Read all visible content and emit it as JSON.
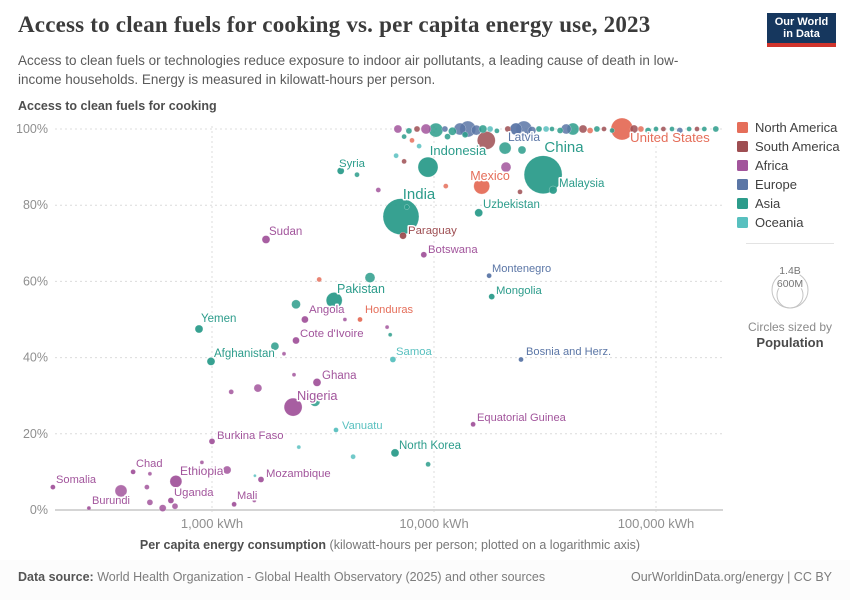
{
  "header": {
    "title": "Access to clean fuels for cooking vs. per capita energy use, 2023",
    "subtitle": "Access to clean fuels or technologies reduce exposure to indoor air pollutants, a leading cause of death in low-income households. Energy is measured in kilowatt-hours per person.",
    "logo_line1": "Our World",
    "logo_line2": "in Data"
  },
  "axes": {
    "y_title": "Access to clean fuels for cooking",
    "x_title_bold": "Per capita energy consumption",
    "x_title_rest": " (kilowatt-hours per person; plotted on a logarithmic axis)"
  },
  "legend": {
    "continents": [
      {
        "key": "na",
        "label": "North America"
      },
      {
        "key": "sa",
        "label": "South America"
      },
      {
        "key": "af",
        "label": "Africa"
      },
      {
        "key": "eu",
        "label": "Europe"
      },
      {
        "key": "as",
        "label": "Asia"
      },
      {
        "key": "oc",
        "label": "Oceania"
      }
    ],
    "size": {
      "big": "1.4B",
      "small": "600M",
      "caption": "Circles sized by",
      "caption_bold": "Population"
    }
  },
  "footer": {
    "source_bold": "Data source:",
    "source_rest": " World Health Organization - Global Health Observatory (2025) and other sources",
    "link": "OurWorldinData.org/energy | CC BY"
  },
  "colors": {
    "na": "#e56e5a",
    "sa": "#9e4e52",
    "af": "#a2559c",
    "eu": "#5b76a6",
    "as": "#2c9c8b",
    "oc": "#58c0bf",
    "logo_navy": "#16375e",
    "logo_red": "#d0342c",
    "grid": "#dcdcdc",
    "tick": "#8f8f8f"
  },
  "chart_data": {
    "type": "scatter",
    "x_scale": "log",
    "x_label": "Per capita energy consumption (kWh/person)",
    "y_label": "Access to clean fuels for cooking (%)",
    "x_ticks": [
      {
        "kwh": 1000,
        "label": "1,000 kWh"
      },
      {
        "kwh": 10000,
        "label": "10,000 kWh"
      },
      {
        "kwh": 100000,
        "label": "100,000 kWh"
      }
    ],
    "y_ticks": [
      {
        "pct": 0,
        "label": "0%"
      },
      {
        "pct": 20,
        "label": "20%"
      },
      {
        "pct": 40,
        "label": "40%"
      },
      {
        "pct": 60,
        "label": "60%"
      },
      {
        "pct": 80,
        "label": "80%"
      },
      {
        "pct": 100,
        "label": "100%"
      }
    ],
    "points": [
      {
        "l": "United States",
        "c": "na",
        "k": 70300,
        "p": 100,
        "r": 11,
        "lp": [
          630,
          142,
          "s"
        ]
      },
      {
        "l": "China",
        "c": "as",
        "k": 31000,
        "p": 88,
        "r": 19,
        "lp": [
          564,
          152,
          "m"
        ]
      },
      {
        "l": "India",
        "c": "as",
        "k": 7100,
        "p": 77,
        "r": 18,
        "lp": [
          419,
          199,
          "m"
        ]
      },
      {
        "l": "Indonesia",
        "c": "as",
        "k": 9400,
        "p": 90,
        "r": 10,
        "lp": [
          458,
          155,
          "m"
        ]
      },
      {
        "l": "Latvia",
        "c": "eu",
        "k": 23400,
        "p": 100,
        "r": 6,
        "lp": [
          524,
          141,
          "m"
        ]
      },
      {
        "l": "Mexico",
        "c": "na",
        "k": 16400,
        "p": 85,
        "r": 8,
        "lp": [
          490,
          180,
          "m"
        ]
      },
      {
        "l": "Malaysia",
        "c": "as",
        "k": 34400,
        "p": 84,
        "r": 4,
        "lp": [
          559,
          187,
          "s"
        ]
      },
      {
        "l": "Syria",
        "c": "as",
        "k": 3800,
        "p": 89,
        "r": 3.5,
        "lp": [
          339,
          167,
          "s"
        ]
      },
      {
        "l": "Uzbekistan",
        "c": "as",
        "k": 15900,
        "p": 78,
        "r": 4,
        "lp": [
          483,
          208,
          "s"
        ]
      },
      {
        "l": "Paraguay",
        "c": "sa",
        "k": 7250,
        "p": 72,
        "r": 3.5,
        "lp": [
          408,
          234,
          "s"
        ]
      },
      {
        "l": "Sudan",
        "c": "af",
        "k": 1750,
        "p": 71,
        "r": 4,
        "lp": [
          269,
          235,
          "s"
        ]
      },
      {
        "l": "Botswana",
        "c": "af",
        "k": 9000,
        "p": 67,
        "r": 3,
        "lp": [
          428,
          253,
          "s"
        ]
      },
      {
        "l": "Montenegro",
        "c": "eu",
        "k": 17700,
        "p": 61.5,
        "r": 2.5,
        "lp": [
          492,
          272,
          "s"
        ]
      },
      {
        "l": "Mongolia",
        "c": "as",
        "k": 18200,
        "p": 56,
        "r": 3,
        "lp": [
          496,
          294,
          "s"
        ]
      },
      {
        "l": "Pakistan",
        "c": "as",
        "k": 3550,
        "p": 55,
        "r": 8,
        "lp": [
          361,
          293,
          "m"
        ]
      },
      {
        "l": "Angola",
        "c": "af",
        "k": 2620,
        "p": 50,
        "r": 3.5,
        "lp": [
          309,
          313,
          "s"
        ]
      },
      {
        "l": "Honduras",
        "c": "na",
        "k": 4640,
        "p": 50,
        "r": 2.5,
        "lp": [
          365,
          313,
          "s"
        ]
      },
      {
        "l": "Yemen",
        "c": "as",
        "k": 874,
        "p": 47.5,
        "r": 4,
        "lp": [
          201,
          322,
          "s"
        ]
      },
      {
        "l": "Cote d'Ivoire",
        "c": "af",
        "k": 2390,
        "p": 44.5,
        "r": 3.5,
        "lp": [
          300,
          337,
          "s"
        ]
      },
      {
        "l": "Afghanistan",
        "c": "as",
        "k": 990,
        "p": 39,
        "r": 4,
        "lp": [
          214,
          357,
          "s"
        ]
      },
      {
        "l": "Samoa",
        "c": "oc",
        "k": 6530,
        "p": 39.5,
        "r": 3,
        "lp": [
          396,
          355,
          "s"
        ]
      },
      {
        "l": "Bosnia and Herz.",
        "c": "eu",
        "k": 24650,
        "p": 39.5,
        "r": 2.5,
        "lp": [
          526,
          355,
          "s"
        ]
      },
      {
        "l": "Ghana",
        "c": "af",
        "k": 2970,
        "p": 33.5,
        "r": 4,
        "lp": [
          322,
          379,
          "s"
        ]
      },
      {
        "l": "Nigeria",
        "c": "af",
        "k": 2320,
        "p": 27,
        "r": 9,
        "lp": [
          297,
          400,
          "s"
        ]
      },
      {
        "l": "Vanuatu",
        "c": "oc",
        "k": 3620,
        "p": 21,
        "r": 2.5,
        "lp": [
          342,
          429,
          "s"
        ]
      },
      {
        "l": "Equatorial Guinea",
        "c": "af",
        "k": 15000,
        "p": 22.5,
        "r": 2.5,
        "lp": [
          477,
          421,
          "s"
        ]
      },
      {
        "l": "Burkina Faso",
        "c": "af",
        "k": 1000,
        "p": 18,
        "r": 3,
        "lp": [
          217,
          439,
          "s"
        ]
      },
      {
        "l": "North Korea",
        "c": "as",
        "k": 6670,
        "p": 15,
        "r": 4,
        "lp": [
          399,
          449,
          "s"
        ]
      },
      {
        "l": "Chad",
        "c": "af",
        "k": 441,
        "p": 10,
        "r": 2.5,
        "lp": [
          136,
          467,
          "s"
        ]
      },
      {
        "l": "Ethiopia",
        "c": "af",
        "k": 688,
        "p": 7.5,
        "r": 6,
        "lp": [
          180,
          475,
          "s"
        ]
      },
      {
        "l": "Somalia",
        "c": "af",
        "k": 192,
        "p": 6,
        "r": 2.5,
        "lp": [
          56,
          483,
          "s"
        ]
      },
      {
        "l": "Mozambique",
        "c": "af",
        "k": 1663,
        "p": 8,
        "r": 3,
        "lp": [
          266,
          477,
          "s"
        ]
      },
      {
        "l": "Uganda",
        "c": "af",
        "k": 653,
        "p": 2.5,
        "r": 3,
        "lp": [
          174,
          496,
          "s"
        ]
      },
      {
        "l": "Mali",
        "c": "af",
        "k": 1257,
        "p": 1.5,
        "r": 2.5,
        "lp": [
          237,
          499,
          "s"
        ]
      },
      {
        "l": "Burundi",
        "c": "af",
        "k": 279,
        "p": 0.5,
        "r": 2,
        "lp": [
          92,
          504,
          "s"
        ]
      },
      {
        "c": "af",
        "k": 6880,
        "p": 100,
        "r": 4
      },
      {
        "c": "as",
        "k": 7710,
        "p": 99.5,
        "r": 3
      },
      {
        "c": "sa",
        "k": 8380,
        "p": 100,
        "r": 3
      },
      {
        "c": "af",
        "k": 9200,
        "p": 100,
        "r": 5
      },
      {
        "c": "as",
        "k": 10200,
        "p": 99.7,
        "r": 7
      },
      {
        "c": "eu",
        "k": 11200,
        "p": 100,
        "r": 3
      },
      {
        "c": "as",
        "k": 12100,
        "p": 99.4,
        "r": 4
      },
      {
        "c": "eu",
        "k": 13100,
        "p": 100,
        "r": 6
      },
      {
        "c": "eu",
        "k": 14200,
        "p": 100,
        "r": 8
      },
      {
        "c": "eu",
        "k": 15500,
        "p": 99.7,
        "r": 5
      },
      {
        "c": "as",
        "k": 16600,
        "p": 100,
        "r": 4
      },
      {
        "c": "oc",
        "k": 17900,
        "p": 100,
        "r": 3
      },
      {
        "c": "as",
        "k": 19200,
        "p": 99.5,
        "r": 2.5
      },
      {
        "c": "sa",
        "k": 21500,
        "p": 100,
        "r": 3
      },
      {
        "c": "eu",
        "k": 25400,
        "p": 100,
        "r": 8
      },
      {
        "c": "eu",
        "k": 27600,
        "p": 99.6,
        "r": 4
      },
      {
        "c": "as",
        "k": 29700,
        "p": 100,
        "r": 3
      },
      {
        "c": "oc",
        "k": 32000,
        "p": 100,
        "r": 3
      },
      {
        "c": "as",
        "k": 34000,
        "p": 100,
        "r": 2.5
      },
      {
        "c": "as",
        "k": 37000,
        "p": 99.6,
        "r": 3
      },
      {
        "c": "eu",
        "k": 39400,
        "p": 100,
        "r": 5
      },
      {
        "c": "as",
        "k": 42300,
        "p": 100,
        "r": 6
      },
      {
        "c": "sa",
        "k": 46900,
        "p": 100,
        "r": 4
      },
      {
        "c": "na",
        "k": 50500,
        "p": 99.6,
        "r": 3
      },
      {
        "c": "as",
        "k": 54200,
        "p": 100,
        "r": 3
      },
      {
        "c": "sa",
        "k": 58300,
        "p": 100,
        "r": 2.5
      },
      {
        "c": "as",
        "k": 63400,
        "p": 99.6,
        "r": 2.5
      },
      {
        "c": "sa",
        "k": 79600,
        "p": 100,
        "r": 4
      },
      {
        "c": "na",
        "k": 85500,
        "p": 100,
        "r": 3
      },
      {
        "c": "as",
        "k": 92100,
        "p": 99.6,
        "r": 3
      },
      {
        "c": "as",
        "k": 100000,
        "p": 100,
        "r": 2.5
      },
      {
        "c": "sa",
        "k": 108000,
        "p": 100,
        "r": 2.5
      },
      {
        "c": "as",
        "k": 118000,
        "p": 100,
        "r": 2.5
      },
      {
        "c": "eu",
        "k": 128000,
        "p": 99.6,
        "r": 3
      },
      {
        "c": "as",
        "k": 141000,
        "p": 100,
        "r": 2.5
      },
      {
        "c": "sa",
        "k": 153000,
        "p": 100,
        "r": 2.5
      },
      {
        "c": "as",
        "k": 165000,
        "p": 100,
        "r": 2.5
      },
      {
        "c": "as",
        "k": 186000,
        "p": 100,
        "r": 3
      },
      {
        "c": "as",
        "k": 7330,
        "p": 98,
        "r": 2.5
      },
      {
        "c": "na",
        "k": 7960,
        "p": 97,
        "r": 2.5
      },
      {
        "c": "oc",
        "k": 8570,
        "p": 95.5,
        "r": 2.5
      },
      {
        "c": "as",
        "k": 11500,
        "p": 98,
        "r": 3
      },
      {
        "c": "as",
        "k": 13800,
        "p": 98.5,
        "r": 3
      },
      {
        "c": "sa",
        "k": 17200,
        "p": 97,
        "r": 9
      },
      {
        "c": "as",
        "k": 20900,
        "p": 95,
        "r": 6
      },
      {
        "c": "as",
        "k": 24900,
        "p": 94.5,
        "r": 4
      },
      {
        "c": "af",
        "k": 21100,
        "p": 90,
        "r": 5
      },
      {
        "c": "sa",
        "k": 24400,
        "p": 83.5,
        "r": 2.5
      },
      {
        "c": "oc",
        "k": 6750,
        "p": 93,
        "r": 2.5
      },
      {
        "c": "sa",
        "k": 7330,
        "p": 91.5,
        "r": 2.5
      },
      {
        "c": "as",
        "k": 4500,
        "p": 88,
        "r": 2.5
      },
      {
        "c": "af",
        "k": 5610,
        "p": 84,
        "r": 2.5
      },
      {
        "c": "na",
        "k": 11300,
        "p": 85,
        "r": 2.5
      },
      {
        "c": "as",
        "k": 7540,
        "p": 79.5,
        "r": 2.5
      },
      {
        "c": "as",
        "k": 5150,
        "p": 61,
        "r": 5
      },
      {
        "c": "na",
        "k": 3040,
        "p": 60.5,
        "r": 2.5
      },
      {
        "c": "as",
        "k": 2390,
        "p": 54,
        "r": 4.5
      },
      {
        "c": "af",
        "k": 3970,
        "p": 50,
        "r": 2
      },
      {
        "c": "af",
        "k": 6150,
        "p": 48,
        "r": 2
      },
      {
        "c": "as",
        "k": 6350,
        "p": 46,
        "r": 2
      },
      {
        "c": "as",
        "k": 1920,
        "p": 43,
        "r": 4
      },
      {
        "c": "af",
        "k": 2110,
        "p": 41,
        "r": 2
      },
      {
        "c": "af",
        "k": 2340,
        "p": 35.5,
        "r": 2
      },
      {
        "c": "as",
        "k": 2910,
        "p": 28.5,
        "r": 5
      },
      {
        "c": "af",
        "k": 1610,
        "p": 32,
        "r": 4
      },
      {
        "c": "af",
        "k": 1220,
        "p": 31,
        "r": 2.5
      },
      {
        "c": "oc",
        "k": 2460,
        "p": 16.5,
        "r": 2
      },
      {
        "c": "oc",
        "k": 4320,
        "p": 14,
        "r": 2.5
      },
      {
        "c": "as",
        "k": 9410,
        "p": 12,
        "r": 2.5
      },
      {
        "c": "af",
        "k": 525,
        "p": 9.5,
        "r": 2
      },
      {
        "c": "af",
        "k": 1170,
        "p": 10.5,
        "r": 4
      },
      {
        "c": "af",
        "k": 389,
        "p": 5,
        "r": 6
      },
      {
        "c": "af",
        "k": 509,
        "p": 6,
        "r": 2.5
      },
      {
        "c": "af",
        "k": 525,
        "p": 2,
        "r": 3
      },
      {
        "c": "af",
        "k": 600,
        "p": 0.5,
        "r": 3.5
      },
      {
        "c": "af",
        "k": 681,
        "p": 1,
        "r": 3
      },
      {
        "c": "af",
        "k": 1550,
        "p": 2.5,
        "r": 2
      },
      {
        "c": "oc",
        "k": 1560,
        "p": 9,
        "r": 1.5
      },
      {
        "c": "af",
        "k": 901,
        "p": 12.5,
        "r": 2
      }
    ]
  }
}
